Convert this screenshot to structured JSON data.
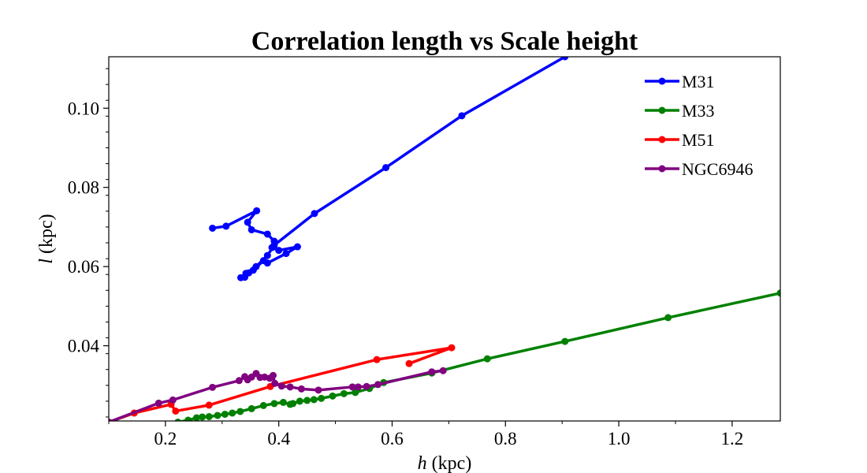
{
  "chart_data": {
    "type": "line",
    "title": "Correlation length vs Scale height",
    "xlabel_var": "h",
    "xlabel_unit": " (kpc)",
    "ylabel_var": "l",
    "ylabel_unit": " (kpc)",
    "xlim": [
      0.1,
      1.285
    ],
    "ylim": [
      0.021,
      0.113
    ],
    "xticks": [
      0.2,
      0.4,
      0.6,
      0.8,
      1.0,
      1.2
    ],
    "xtick_labels": [
      "0.2",
      "0.4",
      "0.6",
      "0.8",
      "1.0",
      "1.2"
    ],
    "yticks": [
      0.04,
      0.06,
      0.08,
      0.1
    ],
    "ytick_labels": [
      "0.04",
      "0.06",
      "0.08",
      "0.10"
    ],
    "grid": false,
    "legend_position": "top-right",
    "series": [
      {
        "name": "M31",
        "color": "#0000ff",
        "points": [
          [
            0.283,
            0.0697
          ],
          [
            0.307,
            0.0702
          ],
          [
            0.361,
            0.0741
          ],
          [
            0.345,
            0.0712
          ],
          [
            0.352,
            0.0693
          ],
          [
            0.38,
            0.0682
          ],
          [
            0.392,
            0.0664
          ],
          [
            0.388,
            0.0648
          ],
          [
            0.4,
            0.0641
          ],
          [
            0.433,
            0.065
          ],
          [
            0.413,
            0.0633
          ],
          [
            0.38,
            0.0609
          ],
          [
            0.373,
            0.0615
          ],
          [
            0.355,
            0.0591
          ],
          [
            0.347,
            0.0584
          ],
          [
            0.34,
            0.0573
          ],
          [
            0.333,
            0.0572
          ],
          [
            0.342,
            0.0583
          ],
          [
            0.36,
            0.06
          ],
          [
            0.38,
            0.0628
          ],
          [
            0.392,
            0.0654
          ],
          [
            0.463,
            0.0734
          ],
          [
            0.589,
            0.085
          ],
          [
            0.723,
            0.0981
          ],
          [
            0.905,
            0.113
          ]
        ]
      },
      {
        "name": "M33",
        "color": "#008000",
        "points": [
          [
            0.222,
            0.0207
          ],
          [
            0.24,
            0.0212
          ],
          [
            0.255,
            0.0218
          ],
          [
            0.265,
            0.022
          ],
          [
            0.277,
            0.0221
          ],
          [
            0.292,
            0.0224
          ],
          [
            0.305,
            0.0227
          ],
          [
            0.318,
            0.023
          ],
          [
            0.332,
            0.0234
          ],
          [
            0.352,
            0.0241
          ],
          [
            0.373,
            0.0249
          ],
          [
            0.392,
            0.0254
          ],
          [
            0.408,
            0.0257
          ],
          [
            0.42,
            0.0252
          ],
          [
            0.425,
            0.0254
          ],
          [
            0.437,
            0.026
          ],
          [
            0.45,
            0.0262
          ],
          [
            0.462,
            0.0264
          ],
          [
            0.475,
            0.0267
          ],
          [
            0.495,
            0.0273
          ],
          [
            0.515,
            0.0279
          ],
          [
            0.535,
            0.0282
          ],
          [
            0.56,
            0.0292
          ],
          [
            0.585,
            0.0307
          ],
          [
            0.67,
            0.0331
          ],
          [
            0.768,
            0.0367
          ],
          [
            0.905,
            0.0411
          ],
          [
            1.087,
            0.0471
          ],
          [
            1.285,
            0.0533
          ]
        ]
      },
      {
        "name": "M51",
        "color": "#ff0000",
        "points": [
          [
            0.1,
            0.0207
          ],
          [
            0.145,
            0.023
          ],
          [
            0.21,
            0.0252
          ],
          [
            0.218,
            0.0235
          ],
          [
            0.277,
            0.025
          ],
          [
            0.385,
            0.0297
          ],
          [
            0.573,
            0.0365
          ],
          [
            0.705,
            0.0395
          ],
          [
            0.63,
            0.0355
          ]
        ]
      },
      {
        "name": "NGC6946",
        "color": "#800080",
        "points": [
          [
            0.1,
            0.0207
          ],
          [
            0.188,
            0.0255
          ],
          [
            0.213,
            0.0263
          ],
          [
            0.283,
            0.0295
          ],
          [
            0.33,
            0.0312
          ],
          [
            0.34,
            0.0322
          ],
          [
            0.345,
            0.0314
          ],
          [
            0.352,
            0.0321
          ],
          [
            0.36,
            0.033
          ],
          [
            0.367,
            0.032
          ],
          [
            0.375,
            0.0321
          ],
          [
            0.384,
            0.0318
          ],
          [
            0.39,
            0.0325
          ],
          [
            0.393,
            0.0305
          ],
          [
            0.405,
            0.0298
          ],
          [
            0.42,
            0.0296
          ],
          [
            0.44,
            0.0291
          ],
          [
            0.47,
            0.0288
          ],
          [
            0.53,
            0.0296
          ],
          [
            0.54,
            0.0296
          ],
          [
            0.555,
            0.0297
          ],
          [
            0.575,
            0.0302
          ],
          [
            0.67,
            0.0334
          ],
          [
            0.69,
            0.0337
          ]
        ]
      }
    ]
  }
}
